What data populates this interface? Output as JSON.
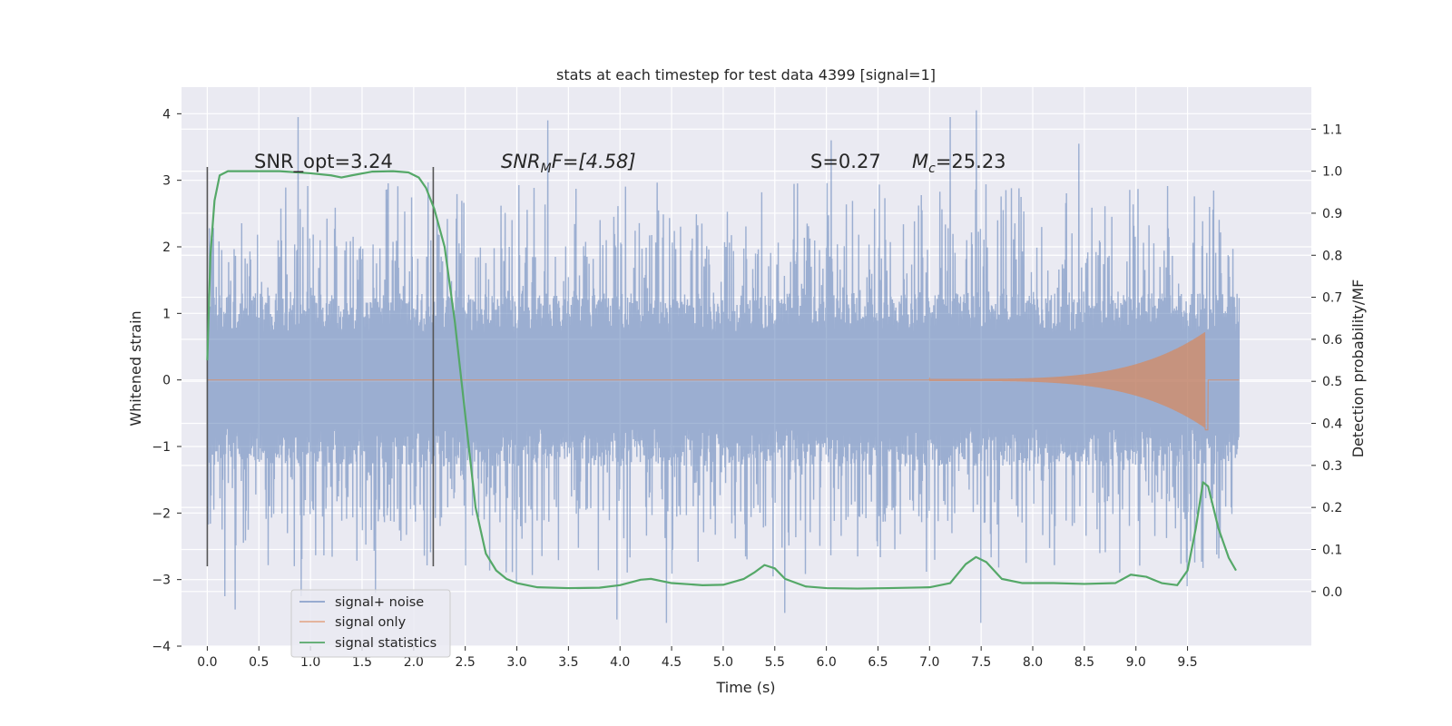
{
  "chart_data": {
    "type": "line",
    "title": "stats at each timestep for test data 4399 [signal=1]",
    "xlabel": "Time (s)",
    "ylabel": "Whitened strain",
    "ylabel_right": "Detection probability/MF",
    "xlim": [
      -0.25,
      10.7
    ],
    "ylim": [
      -4.0,
      4.4
    ],
    "ylim_right": [
      -0.13,
      1.2
    ],
    "x_ticks": [
      "0.0",
      "0.5",
      "1.0",
      "1.5",
      "2.0",
      "2.5",
      "3.0",
      "3.5",
      "4.0",
      "4.5",
      "5.0",
      "5.5",
      "6.0",
      "6.5",
      "7.0",
      "7.5",
      "8.0",
      "8.5",
      "9.0",
      "9.5"
    ],
    "y_ticks": [
      "4",
      "3",
      "2",
      "1",
      "0",
      "−1",
      "−2",
      "−3",
      "−4"
    ],
    "y_tick_values": [
      4,
      3,
      2,
      1,
      0,
      -1,
      -2,
      -3,
      -4
    ],
    "y_right_ticks": [
      "1.1",
      "1.0",
      "0.9",
      "0.8",
      "0.7",
      "0.6",
      "0.5",
      "0.4",
      "0.3",
      "0.2",
      "0.1",
      "0.0"
    ],
    "y_right_tick_values": [
      1.1,
      1.0,
      0.9,
      0.8,
      0.7,
      0.6,
      0.5,
      0.4,
      0.3,
      0.2,
      0.1,
      0.0
    ],
    "grid": true,
    "background_color": "#eaeaf2",
    "legend_position": "lower-left",
    "annotations": {
      "snr_opt": "SNR_opt=3.24",
      "snr_mf_prefix": "SNR",
      "snr_mf_sub": "M",
      "snr_mf_suffix": "F=[4.58]",
      "s_value": "S=0.27",
      "mc_prefix": "M",
      "mc_sub": "c",
      "mc_suffix": "=25.23"
    },
    "vertical_markers": [
      {
        "x": 0.0,
        "ymin": -2.8,
        "ymax": 3.2
      },
      {
        "x": 2.19,
        "ymin": -2.8,
        "ymax": 3.2
      }
    ],
    "series": [
      {
        "name": "signal+ noise",
        "color": "#4c72b0",
        "alpha": 0.5,
        "x_range": [
          0.0,
          10.0
        ],
        "core_amplitude": 1.3,
        "typical_peak": 2.2,
        "extreme_peaks": [
          {
            "x": 0.88,
            "y": 3.95
          },
          {
            "x": 3.3,
            "y": 3.9
          },
          {
            "x": 7.2,
            "y": 3.95
          },
          {
            "x": 7.45,
            "y": 4.05
          },
          {
            "x": 0.91,
            "y": -3.25
          },
          {
            "x": 0.17,
            "y": -3.25
          },
          {
            "x": 3.97,
            "y": -3.6
          },
          {
            "x": 4.45,
            "y": -3.65
          },
          {
            "x": 5.6,
            "y": -3.5
          },
          {
            "x": 7.5,
            "y": -3.65
          },
          {
            "x": 1.63,
            "y": -3.2
          },
          {
            "x": 9.5,
            "y": -3.1
          },
          {
            "x": 0.27,
            "y": -3.45
          },
          {
            "x": 3.0,
            "y": -3.05
          },
          {
            "x": 6.05,
            "y": 3.6
          },
          {
            "x": 8.45,
            "y": 3.55
          }
        ]
      },
      {
        "name": "signal only",
        "color": "#dd8452",
        "alpha": 0.5,
        "x_range": [
          0.0,
          10.0
        ],
        "chirp_start": 7.0,
        "chirp_peak_time": 9.67,
        "chirp_peak_amplitude": 0.72,
        "merger_min": -0.75
      },
      {
        "name": "signal statistics",
        "color": "#55a868",
        "axis": "right",
        "x": [
          0.0,
          0.03,
          0.07,
          0.12,
          0.2,
          0.4,
          0.7,
          1.0,
          1.2,
          1.3,
          1.4,
          1.6,
          1.8,
          1.95,
          2.05,
          2.12,
          2.2,
          2.3,
          2.4,
          2.5,
          2.6,
          2.7,
          2.8,
          2.9,
          3.0,
          3.2,
          3.5,
          3.8,
          4.0,
          4.2,
          4.3,
          4.5,
          4.8,
          5.0,
          5.2,
          5.3,
          5.4,
          5.5,
          5.6,
          5.8,
          6.0,
          6.3,
          6.6,
          7.0,
          7.2,
          7.35,
          7.45,
          7.55,
          7.7,
          7.9,
          8.2,
          8.5,
          8.8,
          8.95,
          9.1,
          9.25,
          9.4,
          9.5,
          9.58,
          9.65,
          9.7,
          9.8,
          9.9,
          9.97
        ],
        "y": [
          0.55,
          0.8,
          0.93,
          0.99,
          1.0,
          1.0,
          1.0,
          0.995,
          0.99,
          0.985,
          0.99,
          0.999,
          1.0,
          0.997,
          0.985,
          0.96,
          0.91,
          0.82,
          0.64,
          0.42,
          0.2,
          0.09,
          0.05,
          0.03,
          0.02,
          0.01,
          0.008,
          0.009,
          0.015,
          0.028,
          0.03,
          0.02,
          0.015,
          0.016,
          0.03,
          0.045,
          0.063,
          0.055,
          0.03,
          0.012,
          0.008,
          0.007,
          0.008,
          0.01,
          0.02,
          0.065,
          0.082,
          0.07,
          0.03,
          0.02,
          0.02,
          0.018,
          0.02,
          0.04,
          0.035,
          0.02,
          0.015,
          0.05,
          0.15,
          0.26,
          0.25,
          0.15,
          0.08,
          0.05
        ]
      }
    ]
  }
}
